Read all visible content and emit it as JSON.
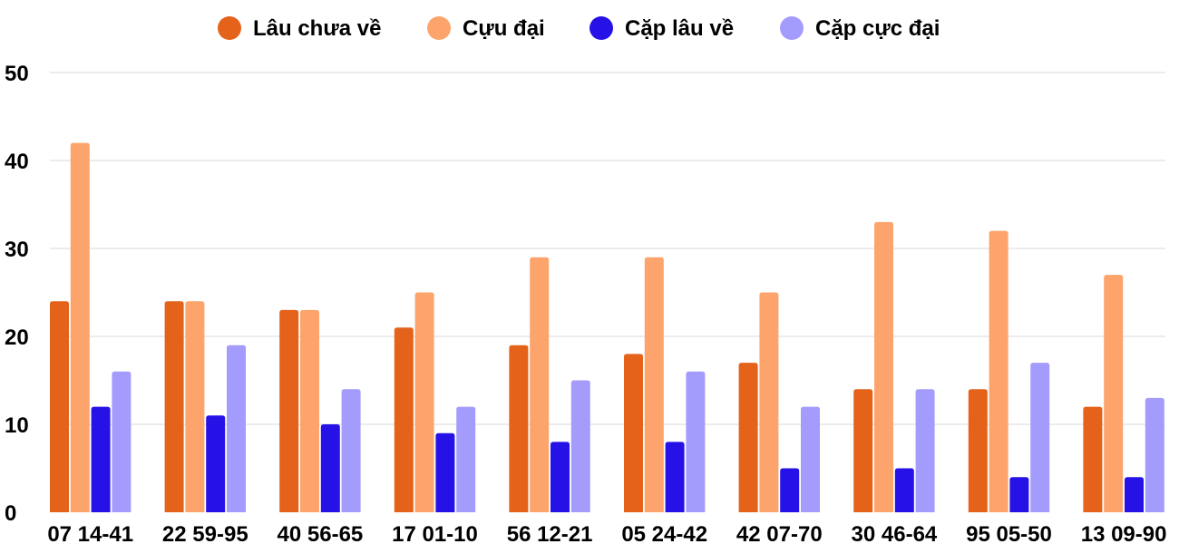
{
  "chart_data": {
    "type": "bar",
    "title": "",
    "xlabel": "",
    "ylabel": "",
    "ylim": [
      0,
      50
    ],
    "yticks": [
      0,
      10,
      20,
      30,
      40,
      50
    ],
    "grid": true,
    "legend_position": "top",
    "categories": [
      "07 14-41",
      "22 59-95",
      "40 56-65",
      "17 01-10",
      "56 12-21",
      "05 24-42",
      "42 07-70",
      "30 46-64",
      "95 05-50",
      "13 09-90"
    ],
    "series": [
      {
        "name": "Lâu chưa về",
        "color": "#e4621a",
        "values": [
          24,
          24,
          23,
          21,
          19,
          18,
          17,
          14,
          14,
          12
        ]
      },
      {
        "name": "Cựu đại",
        "color": "#fca46c",
        "values": [
          42,
          24,
          23,
          25,
          29,
          29,
          25,
          33,
          32,
          27
        ]
      },
      {
        "name": "Cặp lâu về",
        "color": "#2612e6",
        "values": [
          12,
          11,
          10,
          9,
          8,
          8,
          5,
          5,
          4,
          4
        ]
      },
      {
        "name": "Cặp cực đại",
        "color": "#a39cfc",
        "values": [
          16,
          19,
          14,
          12,
          15,
          16,
          12,
          14,
          17,
          13
        ]
      }
    ]
  }
}
